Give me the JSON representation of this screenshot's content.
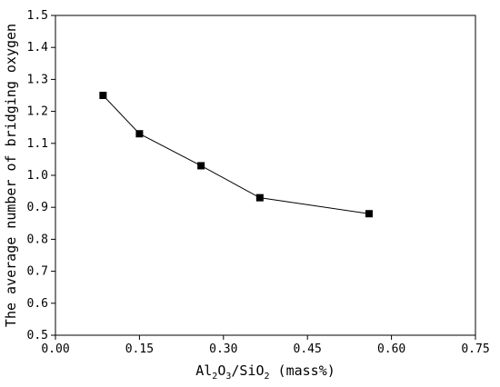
{
  "chart_data": {
    "type": "scatter",
    "x": [
      0.085,
      0.15,
      0.26,
      0.365,
      0.56
    ],
    "y": [
      1.25,
      1.13,
      1.03,
      0.93,
      0.88
    ],
    "marker": "square",
    "line": "solid",
    "color": "#000000",
    "xlabel": {
      "parts": [
        "Al",
        "2",
        "O",
        "3",
        "/SiO",
        "2",
        " (mass%)"
      ]
    },
    "ylabel": "The average number of bridging oxygen",
    "xlim": [
      0.0,
      0.75
    ],
    "ylim": [
      0.5,
      1.5
    ],
    "xticks": [
      "0.00",
      "0.15",
      "0.30",
      "0.45",
      "0.60",
      "0.75"
    ],
    "yticks": [
      "0.5",
      "0.6",
      "0.7",
      "0.8",
      "0.9",
      "1.0",
      "1.1",
      "1.2",
      "1.3",
      "1.4",
      "1.5"
    ],
    "grid": false,
    "legend": "none"
  }
}
